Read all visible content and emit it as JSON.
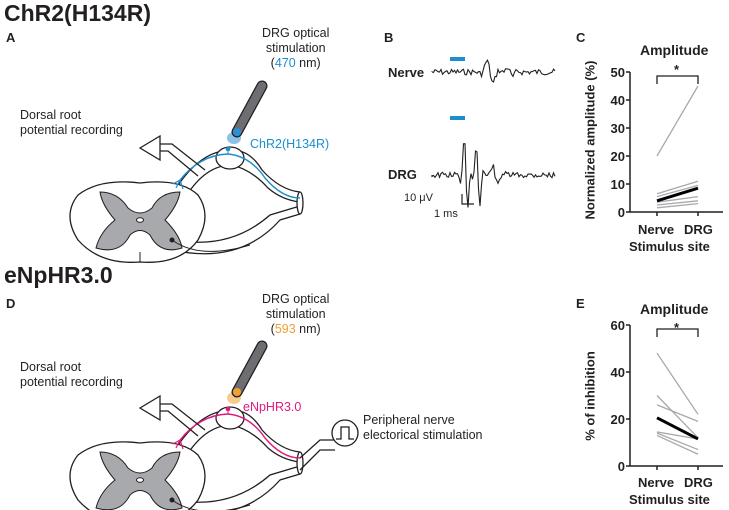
{
  "figure": {
    "section_titles": [
      "ChR2(H134R)",
      "eNpHR3.0"
    ],
    "panels": [
      "A",
      "B",
      "C",
      "D",
      "E"
    ]
  },
  "panel_a": {
    "stim_line1": "DRG optical",
    "stim_line2": "stimulation",
    "stim_open": "(",
    "wavelength": "470",
    "stim_unit": " nm)",
    "recording_line1": "Dorsal root",
    "recording_line2": "potential recording",
    "opsin": "ChR2(H134R)",
    "opsin_color": "#1b8fce",
    "light_color": "#2a8fd8"
  },
  "panel_b": {
    "trace_labels": [
      "Nerve",
      "DRG"
    ],
    "scale_voltage": "10 μV",
    "scale_time": "1 ms",
    "stim_color": "#1b8fce"
  },
  "panel_d": {
    "stim_line1": "DRG optical",
    "stim_line2": "stimulation",
    "stim_open": "(",
    "wavelength": "593",
    "stim_unit": " nm)",
    "recording_line1": "Dorsal root",
    "recording_line2": "potential recording",
    "opsin": "eNpHR3.0",
    "opsin_color": "#e0197d",
    "light_color": "#f0a030",
    "peripheral_line1": "Peripheral nerve",
    "peripheral_line2": "electorical stimulation"
  },
  "chart_data": [
    {
      "type": "line",
      "panel": "C",
      "title": "Amplitude",
      "xlabel": "Stimulus site",
      "ylabel": "Normalized amplitude (%)",
      "categories": [
        "Nerve",
        "DRG"
      ],
      "ylim": [
        0,
        50
      ],
      "yticks": [
        "0",
        "10",
        "20",
        "30",
        "40",
        "50"
      ],
      "significance": "*",
      "series": [
        {
          "name": "individual",
          "values": [
            20,
            45
          ]
        },
        {
          "name": "individual",
          "values": [
            6.5,
            11
          ]
        },
        {
          "name": "individual",
          "values": [
            5.5,
            9.5
          ]
        },
        {
          "name": "individual",
          "values": [
            3.5,
            5.5
          ]
        },
        {
          "name": "individual",
          "values": [
            2.5,
            4
          ]
        },
        {
          "name": "individual",
          "values": [
            1.5,
            3
          ]
        },
        {
          "name": "mean",
          "values": [
            4,
            8.5
          ]
        }
      ]
    },
    {
      "type": "line",
      "panel": "E",
      "title": "Amplitude",
      "xlabel": "Stimulus site",
      "ylabel": "% of inhibition",
      "categories": [
        "Nerve",
        "DRG"
      ],
      "ylim": [
        0,
        60
      ],
      "yticks": [
        "0",
        "20",
        "40",
        "60"
      ],
      "significance": "*",
      "series": [
        {
          "name": "individual",
          "values": [
            48,
            22
          ]
        },
        {
          "name": "individual",
          "values": [
            30,
            12
          ]
        },
        {
          "name": "individual",
          "values": [
            26,
            19
          ]
        },
        {
          "name": "individual",
          "values": [
            14.5,
            11.5
          ]
        },
        {
          "name": "individual",
          "values": [
            14,
            7
          ]
        },
        {
          "name": "individual",
          "values": [
            13,
            5
          ]
        },
        {
          "name": "mean",
          "values": [
            20.5,
            11.5
          ]
        }
      ]
    }
  ]
}
